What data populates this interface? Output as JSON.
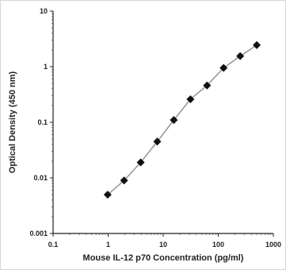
{
  "chart_data": {
    "type": "line",
    "xlabel": "Mouse IL-12 p70 Concentration (pg/ml)",
    "ylabel": "Optical Density (450 nm)",
    "x_scale": "log",
    "y_scale": "log",
    "xlim": [
      0.1,
      1000
    ],
    "ylim": [
      0.001,
      10
    ],
    "x_tick_labels": [
      "0.1",
      "1",
      "10",
      "100",
      "1000"
    ],
    "y_tick_labels": [
      "10",
      "1",
      "0.1",
      "0.01",
      "0.001"
    ],
    "grid": false,
    "legend": false,
    "series": [
      {
        "x": [
          0.98,
          1.95,
          3.9,
          7.8,
          15.6,
          31.25,
          62.5,
          125,
          250,
          500
        ],
        "y": [
          0.005,
          0.009,
          0.019,
          0.045,
          0.11,
          0.26,
          0.46,
          0.95,
          1.55,
          2.45
        ],
        "marker": "diamond",
        "color": "#111111",
        "line_color": "#9a9a9a"
      }
    ]
  }
}
